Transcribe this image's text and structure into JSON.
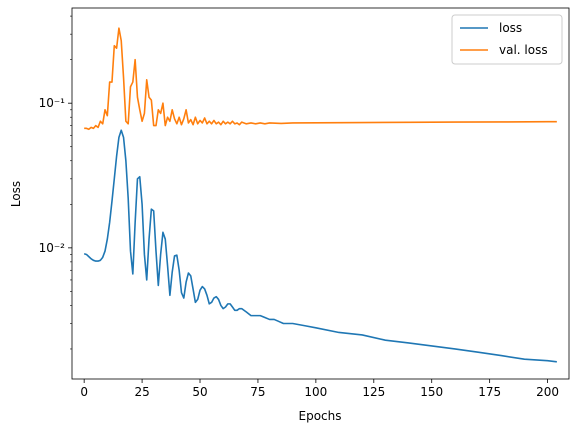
{
  "chart_data": {
    "type": "line",
    "title": "",
    "xlabel": "Epochs",
    "ylabel": "Loss",
    "yscale": "log",
    "xlim": [
      -5.25,
      209.25
    ],
    "ylim": [
      0.00124,
      0.455
    ],
    "grid": false,
    "legend_position": "upper right",
    "x_ticks": [
      0,
      25,
      50,
      75,
      100,
      125,
      150,
      175,
      200
    ],
    "x_tick_labels": [
      "0",
      "25",
      "50",
      "75",
      "100",
      "125",
      "150",
      "175",
      "200"
    ],
    "y_major_ticks": [
      0.01,
      0.1
    ],
    "y_tick_labels": [
      "10⁻²",
      "10⁻¹"
    ],
    "series": [
      {
        "name": "loss",
        "color": "#1f77b4",
        "points": [
          [
            0,
            0.0091
          ],
          [
            1,
            0.009
          ],
          [
            2,
            0.0087
          ],
          [
            3,
            0.0084
          ],
          [
            4,
            0.0082
          ],
          [
            5,
            0.0081
          ],
          [
            6,
            0.0081
          ],
          [
            7,
            0.0082
          ],
          [
            8,
            0.0086
          ],
          [
            9,
            0.0095
          ],
          [
            10,
            0.0115
          ],
          [
            11,
            0.015
          ],
          [
            12,
            0.021
          ],
          [
            13,
            0.03
          ],
          [
            14,
            0.043
          ],
          [
            15,
            0.058
          ],
          [
            16,
            0.065
          ],
          [
            17,
            0.058
          ],
          [
            18,
            0.04
          ],
          [
            19,
            0.022
          ],
          [
            20,
            0.0095
          ],
          [
            21,
            0.0066
          ],
          [
            22,
            0.015
          ],
          [
            23,
            0.03
          ],
          [
            24,
            0.031
          ],
          [
            25,
            0.02
          ],
          [
            26,
            0.009
          ],
          [
            27,
            0.006
          ],
          [
            28,
            0.0115
          ],
          [
            29,
            0.0185
          ],
          [
            30,
            0.018
          ],
          [
            31,
            0.0095
          ],
          [
            32,
            0.0055
          ],
          [
            33,
            0.009
          ],
          [
            34,
            0.0128
          ],
          [
            35,
            0.0115
          ],
          [
            36,
            0.0075
          ],
          [
            37,
            0.0047
          ],
          [
            38,
            0.0068
          ],
          [
            39,
            0.0088
          ],
          [
            40,
            0.0089
          ],
          [
            41,
            0.007
          ],
          [
            42,
            0.0049
          ],
          [
            43,
            0.0045
          ],
          [
            44,
            0.0058
          ],
          [
            45,
            0.0067
          ],
          [
            46,
            0.0064
          ],
          [
            47,
            0.0052
          ],
          [
            48,
            0.0042
          ],
          [
            49,
            0.0044
          ],
          [
            50,
            0.0051
          ],
          [
            51,
            0.0054
          ],
          [
            52,
            0.0052
          ],
          [
            53,
            0.0047
          ],
          [
            54,
            0.0041
          ],
          [
            55,
            0.0042
          ],
          [
            56,
            0.0045
          ],
          [
            57,
            0.0046
          ],
          [
            58,
            0.0044
          ],
          [
            59,
            0.004
          ],
          [
            60,
            0.0038
          ],
          [
            61,
            0.0039
          ],
          [
            62,
            0.0041
          ],
          [
            63,
            0.0041
          ],
          [
            64,
            0.0039
          ],
          [
            65,
            0.0037
          ],
          [
            66,
            0.0037
          ],
          [
            67,
            0.0038
          ],
          [
            68,
            0.0038
          ],
          [
            70,
            0.0036
          ],
          [
            72,
            0.0034
          ],
          [
            74,
            0.0034
          ],
          [
            76,
            0.0034
          ],
          [
            78,
            0.0033
          ],
          [
            80,
            0.0032
          ],
          [
            82,
            0.0032
          ],
          [
            84,
            0.0031
          ],
          [
            86,
            0.003
          ],
          [
            88,
            0.003
          ],
          [
            90,
            0.003
          ],
          [
            95,
            0.0029
          ],
          [
            100,
            0.0028
          ],
          [
            110,
            0.0026
          ],
          [
            120,
            0.0025
          ],
          [
            130,
            0.0023
          ],
          [
            140,
            0.0022
          ],
          [
            150,
            0.0021
          ],
          [
            160,
            0.002
          ],
          [
            170,
            0.0019
          ],
          [
            180,
            0.0018
          ],
          [
            190,
            0.0017
          ],
          [
            200,
            0.00166
          ],
          [
            204,
            0.00163
          ]
        ]
      },
      {
        "name": "val. loss",
        "color": "#ff7f0e",
        "points": [
          [
            0,
            0.067
          ],
          [
            1,
            0.067
          ],
          [
            2,
            0.066
          ],
          [
            3,
            0.068
          ],
          [
            4,
            0.067
          ],
          [
            5,
            0.07
          ],
          [
            6,
            0.068
          ],
          [
            7,
            0.075
          ],
          [
            8,
            0.072
          ],
          [
            9,
            0.09
          ],
          [
            10,
            0.082
          ],
          [
            11,
            0.14
          ],
          [
            12,
            0.14
          ],
          [
            13,
            0.25
          ],
          [
            14,
            0.24
          ],
          [
            15,
            0.33
          ],
          [
            16,
            0.27
          ],
          [
            17,
            0.15
          ],
          [
            18,
            0.075
          ],
          [
            19,
            0.072
          ],
          [
            20,
            0.13
          ],
          [
            21,
            0.14
          ],
          [
            22,
            0.2
          ],
          [
            23,
            0.11
          ],
          [
            24,
            0.09
          ],
          [
            25,
            0.075
          ],
          [
            26,
            0.085
          ],
          [
            27,
            0.145
          ],
          [
            28,
            0.11
          ],
          [
            29,
            0.105
          ],
          [
            30,
            0.07
          ],
          [
            31,
            0.07
          ],
          [
            32,
            0.09
          ],
          [
            33,
            0.085
          ],
          [
            34,
            0.1
          ],
          [
            35,
            0.07
          ],
          [
            36,
            0.08
          ],
          [
            37,
            0.075
          ],
          [
            38,
            0.09
          ],
          [
            39,
            0.078
          ],
          [
            40,
            0.072
          ],
          [
            41,
            0.08
          ],
          [
            42,
            0.071
          ],
          [
            43,
            0.078
          ],
          [
            44,
            0.09
          ],
          [
            45,
            0.073
          ],
          [
            46,
            0.077
          ],
          [
            47,
            0.071
          ],
          [
            48,
            0.08
          ],
          [
            49,
            0.072
          ],
          [
            50,
            0.076
          ],
          [
            51,
            0.073
          ],
          [
            52,
            0.079
          ],
          [
            53,
            0.072
          ],
          [
            54,
            0.075
          ],
          [
            55,
            0.072
          ],
          [
            56,
            0.076
          ],
          [
            57,
            0.072
          ],
          [
            58,
            0.074
          ],
          [
            59,
            0.071
          ],
          [
            60,
            0.075
          ],
          [
            61,
            0.072
          ],
          [
            62,
            0.074
          ],
          [
            63,
            0.072
          ],
          [
            64,
            0.075
          ],
          [
            65,
            0.072
          ],
          [
            66,
            0.073
          ],
          [
            67,
            0.071
          ],
          [
            68,
            0.074
          ],
          [
            70,
            0.072
          ],
          [
            72,
            0.073
          ],
          [
            74,
            0.072
          ],
          [
            76,
            0.073
          ],
          [
            78,
            0.072
          ],
          [
            80,
            0.073
          ],
          [
            85,
            0.0725
          ],
          [
            90,
            0.073
          ],
          [
            100,
            0.0732
          ],
          [
            120,
            0.0735
          ],
          [
            140,
            0.0737
          ],
          [
            160,
            0.074
          ],
          [
            180,
            0.0742
          ],
          [
            200,
            0.0745
          ],
          [
            204,
            0.0745
          ]
        ]
      }
    ]
  }
}
